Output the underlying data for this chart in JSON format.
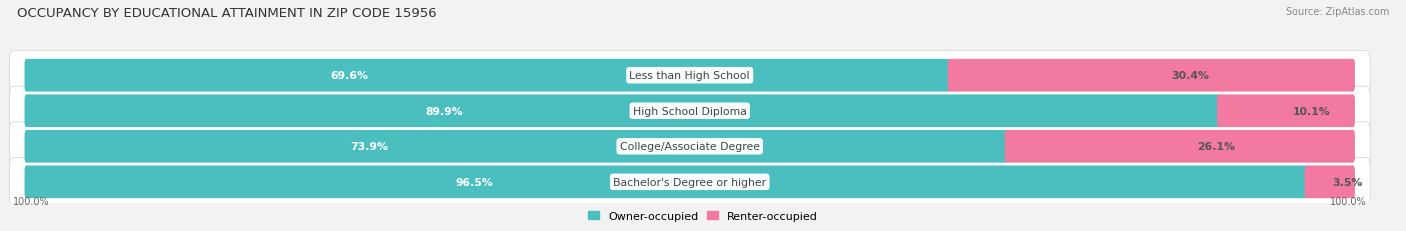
{
  "title": "OCCUPANCY BY EDUCATIONAL ATTAINMENT IN ZIP CODE 15956",
  "source": "Source: ZipAtlas.com",
  "categories": [
    "Less than High School",
    "High School Diploma",
    "College/Associate Degree",
    "Bachelor's Degree or higher"
  ],
  "owner_pct": [
    69.6,
    89.9,
    73.9,
    96.5
  ],
  "renter_pct": [
    30.4,
    10.1,
    26.1,
    3.5
  ],
  "owner_color": "#4BBFBF",
  "renter_color": "#F279A0",
  "bg_color": "#f2f2f2",
  "bar_bg_color": "#e8e8e8",
  "row_bg_color": "#ffffff",
  "title_fontsize": 9.5,
  "label_fontsize": 7.8,
  "source_fontsize": 7.0,
  "legend_fontsize": 8.0,
  "bar_height": 0.62,
  "bottom_labels": [
    "100.0%",
    "100.0%"
  ],
  "legend_owner": "Owner-occupied",
  "legend_renter": "Renter-occupied"
}
